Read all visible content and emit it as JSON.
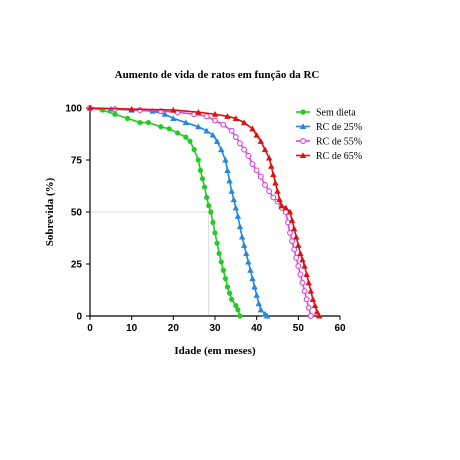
{
  "chart_data": {
    "type": "line",
    "title": "Aumento de vida de ratos em função da RC",
    "xlabel": "Idade (em meses)",
    "ylabel": "Sobrevida (%)",
    "xlim": [
      0,
      60
    ],
    "ylim": [
      0,
      100
    ],
    "x_ticks": [
      "0",
      "10",
      "20",
      "30",
      "40",
      "50",
      "60"
    ],
    "y_ticks": [
      "0",
      "25",
      "50",
      "75",
      "100"
    ],
    "grid": false,
    "legend_position": "top-right",
    "reference_lines": [
      {
        "x": [
          0,
          28.5
        ],
        "y": [
          50,
          50
        ]
      },
      {
        "x": [
          28.5,
          28.5
        ],
        "y": [
          0,
          50
        ]
      }
    ],
    "series": [
      {
        "name": "Sem dieta",
        "color": "#22cc22",
        "marker": "circle",
        "points": [
          [
            0,
            100
          ],
          [
            3,
            99
          ],
          [
            6,
            97
          ],
          [
            9,
            95
          ],
          [
            12,
            93
          ],
          [
            14,
            93
          ],
          [
            17,
            91
          ],
          [
            19,
            90
          ],
          [
            21,
            88
          ],
          [
            23,
            86
          ],
          [
            24,
            84
          ],
          [
            25,
            80
          ],
          [
            26,
            75
          ],
          [
            26.5,
            70
          ],
          [
            27,
            66
          ],
          [
            27.5,
            62
          ],
          [
            28,
            57
          ],
          [
            28.5,
            53
          ],
          [
            29,
            50
          ],
          [
            29.5,
            45
          ],
          [
            30,
            40
          ],
          [
            30.5,
            35
          ],
          [
            31,
            30
          ],
          [
            31.5,
            26
          ],
          [
            32,
            22
          ],
          [
            32.5,
            18
          ],
          [
            33,
            14
          ],
          [
            33.5,
            11
          ],
          [
            34,
            8
          ],
          [
            35,
            5
          ],
          [
            35.5,
            3
          ],
          [
            36,
            0
          ]
        ]
      },
      {
        "name": "RC de 25%",
        "color": "#2288dd",
        "marker": "triangle",
        "points": [
          [
            0,
            100
          ],
          [
            5,
            99.5
          ],
          [
            10,
            99
          ],
          [
            15,
            98.5
          ],
          [
            18,
            97
          ],
          [
            20,
            95
          ],
          [
            23,
            93
          ],
          [
            26,
            91
          ],
          [
            28,
            89
          ],
          [
            29.5,
            87
          ],
          [
            30.5,
            84
          ],
          [
            31.5,
            80
          ],
          [
            32.5,
            75
          ],
          [
            33,
            70
          ],
          [
            33.5,
            65
          ],
          [
            34,
            60
          ],
          [
            34.5,
            56
          ],
          [
            35,
            52
          ],
          [
            35.5,
            48
          ],
          [
            36,
            43
          ],
          [
            36.5,
            38
          ],
          [
            37,
            34
          ],
          [
            37.5,
            30
          ],
          [
            38,
            26
          ],
          [
            38.5,
            22
          ],
          [
            39,
            18
          ],
          [
            39.5,
            14
          ],
          [
            40,
            10
          ],
          [
            40.5,
            6
          ],
          [
            41,
            3
          ],
          [
            42,
            1
          ],
          [
            42.5,
            0
          ]
        ]
      },
      {
        "name": "RC de 55%",
        "color": "#dd44dd",
        "marker": "circle-open",
        "points": [
          [
            0,
            100
          ],
          [
            6,
            99.5
          ],
          [
            12,
            99
          ],
          [
            17,
            98.5
          ],
          [
            21,
            98
          ],
          [
            25,
            97
          ],
          [
            28,
            96
          ],
          [
            30,
            94
          ],
          [
            32,
            92
          ],
          [
            34,
            89
          ],
          [
            35,
            86
          ],
          [
            36,
            83
          ],
          [
            37,
            80
          ],
          [
            38,
            77
          ],
          [
            39,
            73
          ],
          [
            40,
            70
          ],
          [
            41,
            67
          ],
          [
            42,
            63
          ],
          [
            43,
            60
          ],
          [
            44,
            57
          ],
          [
            45,
            55
          ],
          [
            46,
            52
          ],
          [
            47,
            50
          ],
          [
            47.5,
            45
          ],
          [
            48,
            40
          ],
          [
            48.5,
            36
          ],
          [
            49,
            32
          ],
          [
            49.5,
            28
          ],
          [
            50,
            24
          ],
          [
            50.5,
            20
          ],
          [
            51,
            16
          ],
          [
            51.5,
            12
          ],
          [
            52,
            8
          ],
          [
            52.5,
            4
          ],
          [
            53,
            0
          ]
        ]
      },
      {
        "name": "RC de 65%",
        "color": "#dd1111",
        "marker": "triangle",
        "points": [
          [
            0,
            100
          ],
          [
            10,
            99.5
          ],
          [
            20,
            99
          ],
          [
            26,
            98
          ],
          [
            30,
            97
          ],
          [
            33,
            96
          ],
          [
            35,
            95
          ],
          [
            37,
            93
          ],
          [
            39,
            90
          ],
          [
            40,
            87
          ],
          [
            41,
            84
          ],
          [
            42,
            80
          ],
          [
            43,
            76
          ],
          [
            43.5,
            72
          ],
          [
            44,
            68
          ],
          [
            44.5,
            64
          ],
          [
            45,
            60
          ],
          [
            45.5,
            56
          ],
          [
            46,
            53
          ],
          [
            47,
            52
          ],
          [
            48,
            50
          ],
          [
            48.5,
            46
          ],
          [
            49,
            42
          ],
          [
            49.5,
            38
          ],
          [
            50,
            34
          ],
          [
            50.5,
            30
          ],
          [
            51,
            27
          ],
          [
            51.5,
            24
          ],
          [
            52,
            20
          ],
          [
            52.5,
            16
          ],
          [
            53,
            12
          ],
          [
            53.5,
            8
          ],
          [
            54,
            5
          ],
          [
            54.5,
            2
          ],
          [
            55,
            0
          ]
        ]
      }
    ]
  }
}
